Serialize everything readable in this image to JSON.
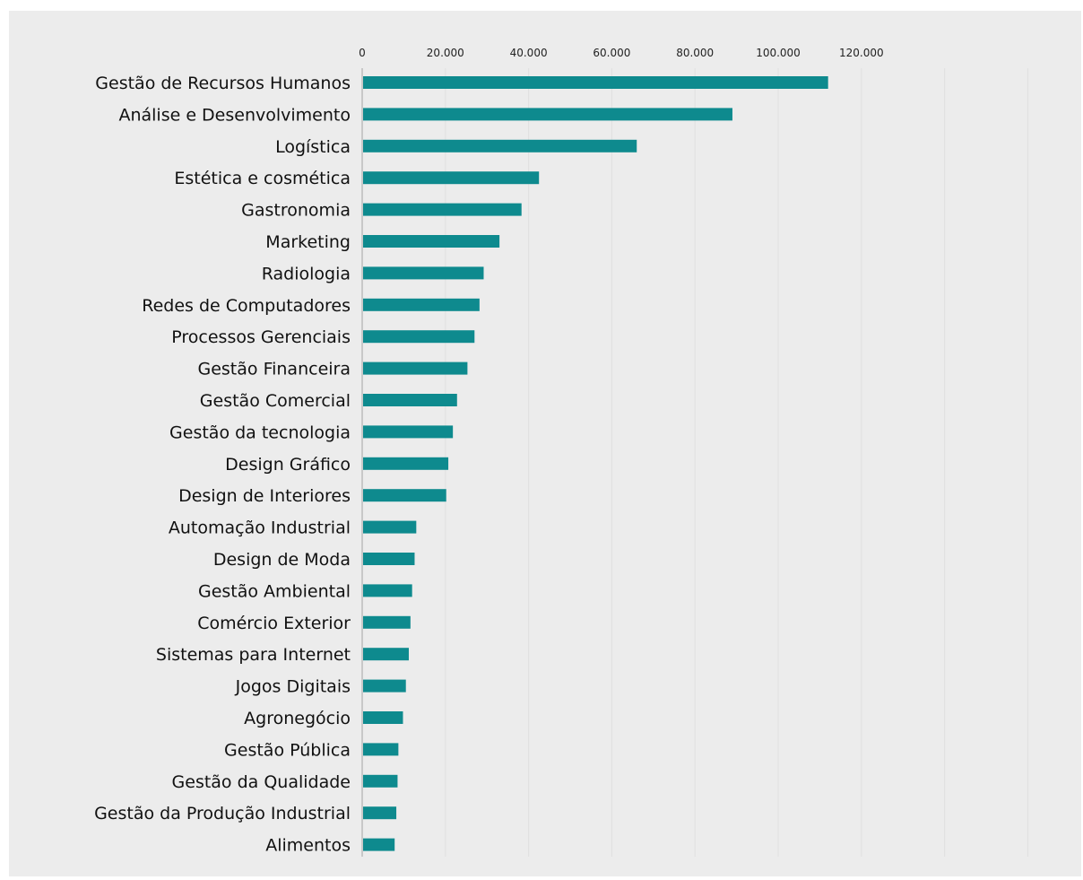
{
  "chart_data": {
    "type": "bar",
    "orientation": "horizontal",
    "categories": [
      "Gestão de Recursos Humanos",
      "Análise e Desenvolvimento",
      "Logística",
      "Estética e cosmética",
      "Gastronomia",
      "Marketing",
      "Radiologia",
      "Redes de Computadores",
      "Processos Gerenciais",
      "Gestão Financeira",
      "Gestão Comercial",
      "Gestão da tecnologia",
      "Design Gráfico",
      "Design de Interiores",
      "Automação Industrial",
      "Design de Moda",
      "Gestão Ambiental",
      "Comércio Exterior",
      "Sistemas para Internet",
      "Jogos Digitais",
      "Agronegócio",
      "Gestão Pública",
      "Gestão da Qualidade",
      "Gestão da Produção Industrial",
      "Alimentos"
    ],
    "values": [
      112000,
      89000,
      66000,
      42500,
      38300,
      33000,
      29200,
      28200,
      27000,
      25300,
      22800,
      21800,
      20700,
      20200,
      13000,
      12600,
      12000,
      11600,
      11200,
      10500,
      9800,
      8700,
      8500,
      8200,
      7800
    ],
    "x_ticks": [
      "0",
      "20.000",
      "40.000",
      "60.000",
      "80.000",
      "100.000",
      "120.000"
    ],
    "x_tick_values": [
      0,
      20000,
      40000,
      60000,
      80000,
      100000,
      120000
    ],
    "xlim": [
      0,
      163000
    ],
    "axis_position": "top",
    "grid": true,
    "colors": {
      "bar": "#0e8a8e",
      "gridline": "#e0e0e0",
      "axis": "#c8c8c8",
      "background": "#ececec"
    }
  }
}
